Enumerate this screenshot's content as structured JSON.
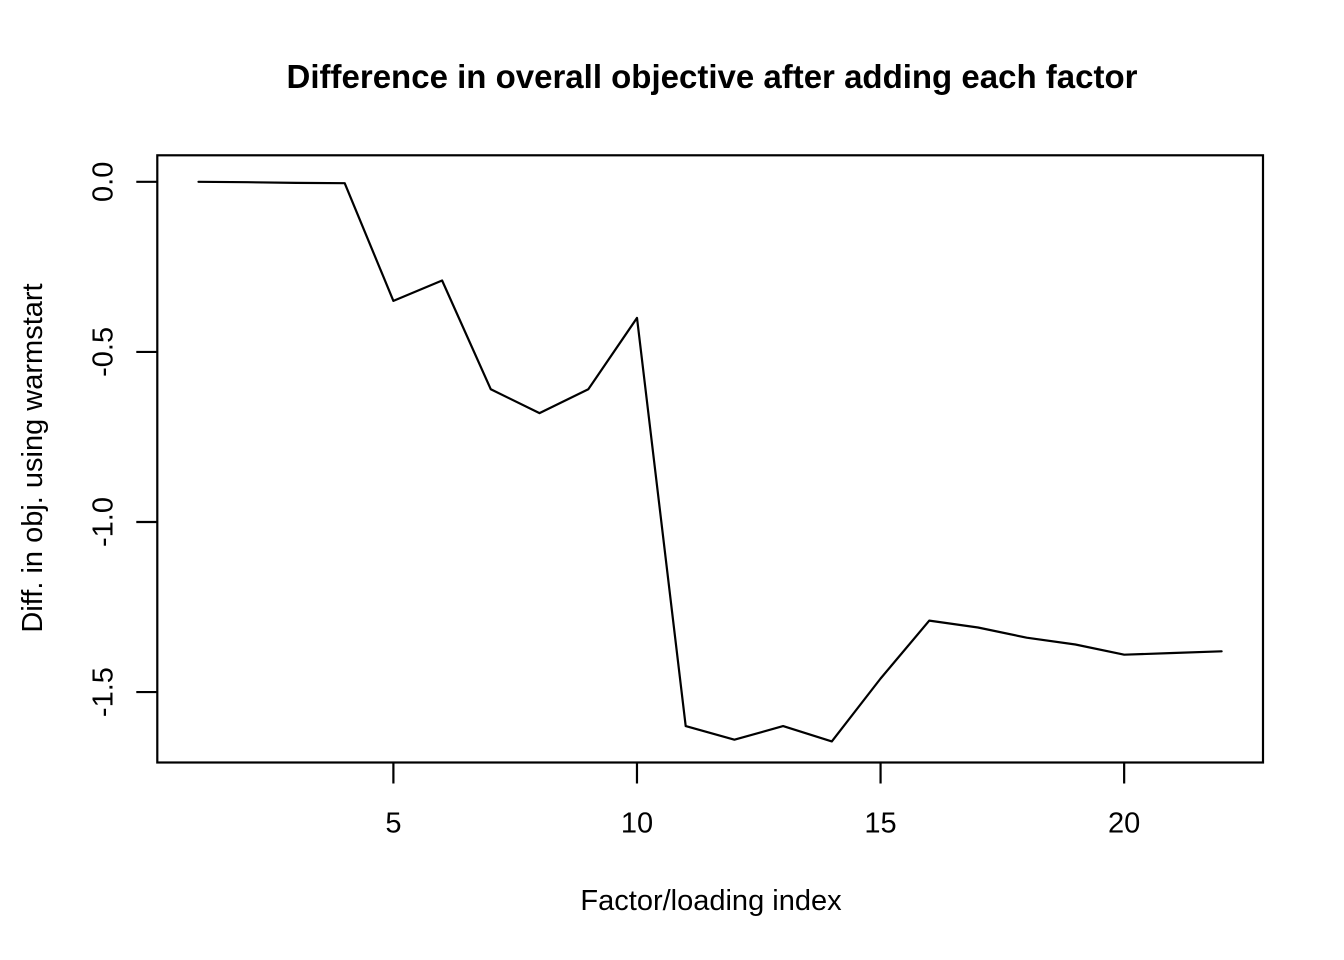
{
  "figure": {
    "background_color": "#ffffff",
    "foreground_color": "#000000"
  },
  "chart_data": {
    "type": "line",
    "title": "Difference in overall objective after adding each factor",
    "xlabel": "Factor/loading index",
    "ylabel": "Diff. in obj. using warmstart",
    "x": [
      1,
      2,
      3,
      4,
      5,
      6,
      7,
      8,
      9,
      10,
      11,
      12,
      13,
      14,
      15,
      16,
      17,
      18,
      19,
      20,
      21,
      22
    ],
    "y": [
      0.0,
      -0.001,
      -0.003,
      -0.004,
      -0.35,
      -0.29,
      -0.61,
      -0.68,
      -0.61,
      -0.4,
      -1.6,
      -1.64,
      -1.6,
      -1.645,
      -1.46,
      -1.29,
      -1.31,
      -1.34,
      -1.36,
      -1.39,
      -1.385,
      -1.38
    ],
    "xlim": [
      0.154,
      22.85
    ],
    "ylim": [
      -1.707,
      0.078
    ],
    "xticks": [
      5,
      10,
      15,
      20
    ],
    "yticks": [
      0.0,
      -0.5,
      -1.0,
      -1.5
    ],
    "xtick_labels": [
      "5",
      "10",
      "15",
      "20"
    ],
    "ytick_labels": [
      "0.0",
      "-0.5",
      "-1.0",
      "-1.5"
    ],
    "line_color": "#000000",
    "line_width": 2.2,
    "grid": false,
    "legend_position": "none",
    "markers": "none"
  }
}
